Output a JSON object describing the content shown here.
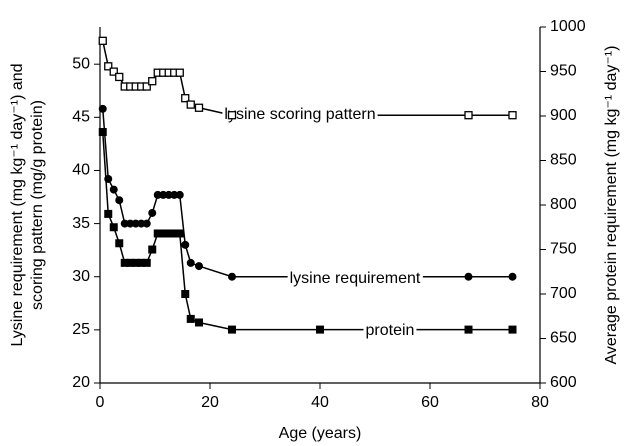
{
  "chart_data": {
    "type": "line",
    "x_label": "Age (years)",
    "y_label": [
      "Lysine requirement (mg kg⁻¹ day⁻¹) and",
      "scoring pattern (mg/g protein)"
    ],
    "y2_label": "Average protein requirement (mg kg⁻¹ day⁻¹)",
    "xlim": [
      0,
      80
    ],
    "xticks": [
      0,
      20,
      40,
      60,
      80
    ],
    "ylim": [
      20,
      53.5
    ],
    "yticks": [
      20,
      25,
      30,
      35,
      40,
      45,
      50
    ],
    "y2lim": [
      600,
      1000
    ],
    "y2ticks": [
      600,
      650,
      700,
      750,
      800,
      850,
      900,
      950,
      1000
    ],
    "series": [
      {
        "name": "lysine scoring pattern",
        "color": "#000000",
        "marker": "open-square",
        "x": [
          0.5,
          1.5,
          2.5,
          3.5,
          4.5,
          5.5,
          6.5,
          7.5,
          8.5,
          9.5,
          10.5,
          11.5,
          12.5,
          13.5,
          14.5,
          15.5,
          16.5,
          18,
          24,
          67,
          75
        ],
        "values": [
          52.2,
          49.8,
          49.3,
          48.8,
          47.9,
          47.9,
          47.9,
          47.9,
          47.9,
          48.4,
          49.2,
          49.2,
          49.2,
          49.2,
          49.2,
          46.8,
          46.2,
          45.9,
          45.2,
          45.2,
          45.2
        ]
      },
      {
        "name": "lysine requirement",
        "color": "#000000",
        "marker": "circle",
        "x": [
          0.5,
          1.5,
          2.5,
          3.5,
          4.5,
          5.5,
          6.5,
          7.5,
          8.5,
          9.5,
          10.5,
          11.5,
          12.5,
          13.5,
          14.5,
          15.5,
          16.5,
          18,
          24,
          67,
          75
        ],
        "values": [
          45.8,
          39.2,
          38.2,
          37.2,
          35,
          35,
          35,
          35,
          35,
          36,
          37.7,
          37.7,
          37.7,
          37.7,
          37.7,
          33,
          31.3,
          31,
          30,
          30,
          30
        ]
      },
      {
        "name": "protein",
        "color": "#000000",
        "marker": "square",
        "axis": "y2",
        "x": [
          0.5,
          1.5,
          2.5,
          3.5,
          4.5,
          5.5,
          6.5,
          7.5,
          8.5,
          9.5,
          10.5,
          11.5,
          12.5,
          13.5,
          14.5,
          15.5,
          16.5,
          18,
          24,
          40,
          67,
          75
        ],
        "values": [
          882,
          790,
          775,
          757,
          735,
          735,
          735,
          735,
          735,
          750,
          768,
          768,
          768,
          768,
          768,
          700,
          672,
          668,
          660,
          660,
          660,
          660
        ]
      }
    ]
  }
}
